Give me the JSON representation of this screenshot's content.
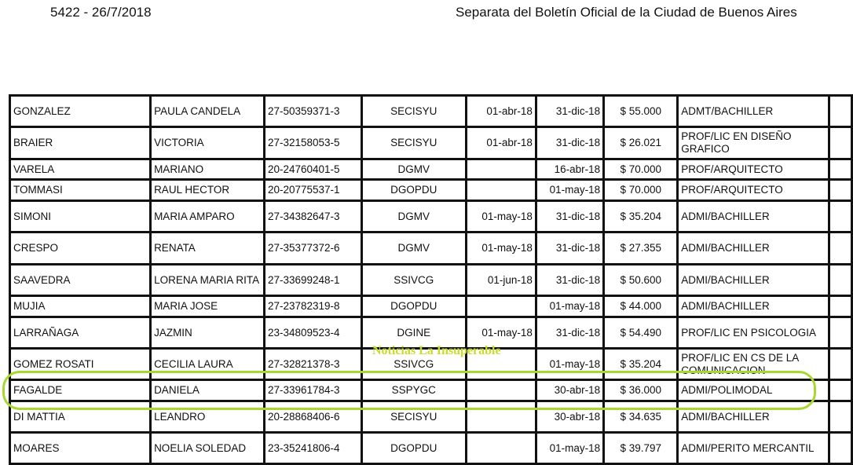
{
  "header": {
    "left": "5422 - 26/7/2018",
    "right": "Separata del Boletín Oficial de la Ciudad de Buenos Aires"
  },
  "watermark": "Noticias La Insuperable",
  "highlight_color": "#a8d830",
  "rows": [
    [
      "GONZALEZ",
      "PAULA CANDELA",
      "27-50359371-3",
      "SECISYU",
      "01-abr-18",
      "31-dic-18",
      "$ 55.000",
      "ADMT/BACHILLER"
    ],
    [
      "BRAIER",
      "VICTORIA",
      "27-32158053-5",
      "SECISYU",
      "01-abr-18",
      "31-dic-18",
      "$ 26.021",
      "PROF/LIC EN DISEÑO GRAFICO"
    ],
    [
      "VARELA",
      "MARIANO",
      "20-24760401-5",
      "DGMV",
      "",
      "16-abr-18",
      "$ 70.000",
      "PROF/ARQUITECTO"
    ],
    [
      "TOMMASI",
      "RAUL HECTOR",
      "20-20775537-1",
      "DGOPDU",
      "",
      "01-may-18",
      "$ 70.000",
      "PROF/ARQUITECTO"
    ],
    [
      "SIMONI",
      "MARIA AMPARO",
      "27-34382647-3",
      "DGMV",
      "01-may-18",
      "31-dic-18",
      "$ 35.204",
      "ADMI/BACHILLER"
    ],
    [
      "CRESPO",
      "RENATA",
      "27-35377372-6",
      "DGMV",
      "01-may-18",
      "31-dic-18",
      "$ 27.355",
      "ADMI/BACHILLER"
    ],
    [
      "SAAVEDRA",
      "LORENA MARIA RITA",
      "27-33699248-1",
      "SSIVCG",
      "01-jun-18",
      "31-dic-18",
      "$ 50.600",
      "ADMI/BACHILLER"
    ],
    [
      "MUJIA",
      "MARIA JOSE",
      "27-23782319-8",
      "DGOPDU",
      "",
      "01-may-18",
      "$ 44.000",
      "ADMI/BACHILLER"
    ],
    [
      "LARRAÑAGA",
      "JAZMIN",
      "23-34809523-4",
      "DGINE",
      "01-may-18",
      "31-dic-18",
      "$ 54.490",
      "PROF/LIC EN PSICOLOGIA"
    ],
    [
      "GOMEZ ROSATI",
      "CECILIA LAURA",
      "27-32821378-3",
      "SSIVCG",
      "",
      "01-may-18",
      "$ 35.204",
      "PROF/LIC EN CS DE LA COMUNICACION"
    ],
    [
      "FAGALDE",
      "DANIELA",
      "27-33961784-3",
      "SSPYGC",
      "",
      "30-abr-18",
      "$ 36.000",
      "ADMI/POLIMODAL"
    ],
    [
      "DI MATTIA",
      "LEANDRO",
      "20-28868406-6",
      "SECISYU",
      "",
      "30-abr-18",
      "$ 34.635",
      "ADMI/BACHILLER"
    ],
    [
      "MOARES",
      "NOELIA SOLEDAD",
      "23-35241806-4",
      "DGOPDU",
      "",
      "01-may-18",
      "$ 39.797",
      "ADMI/PERITO MERCANTIL"
    ]
  ]
}
